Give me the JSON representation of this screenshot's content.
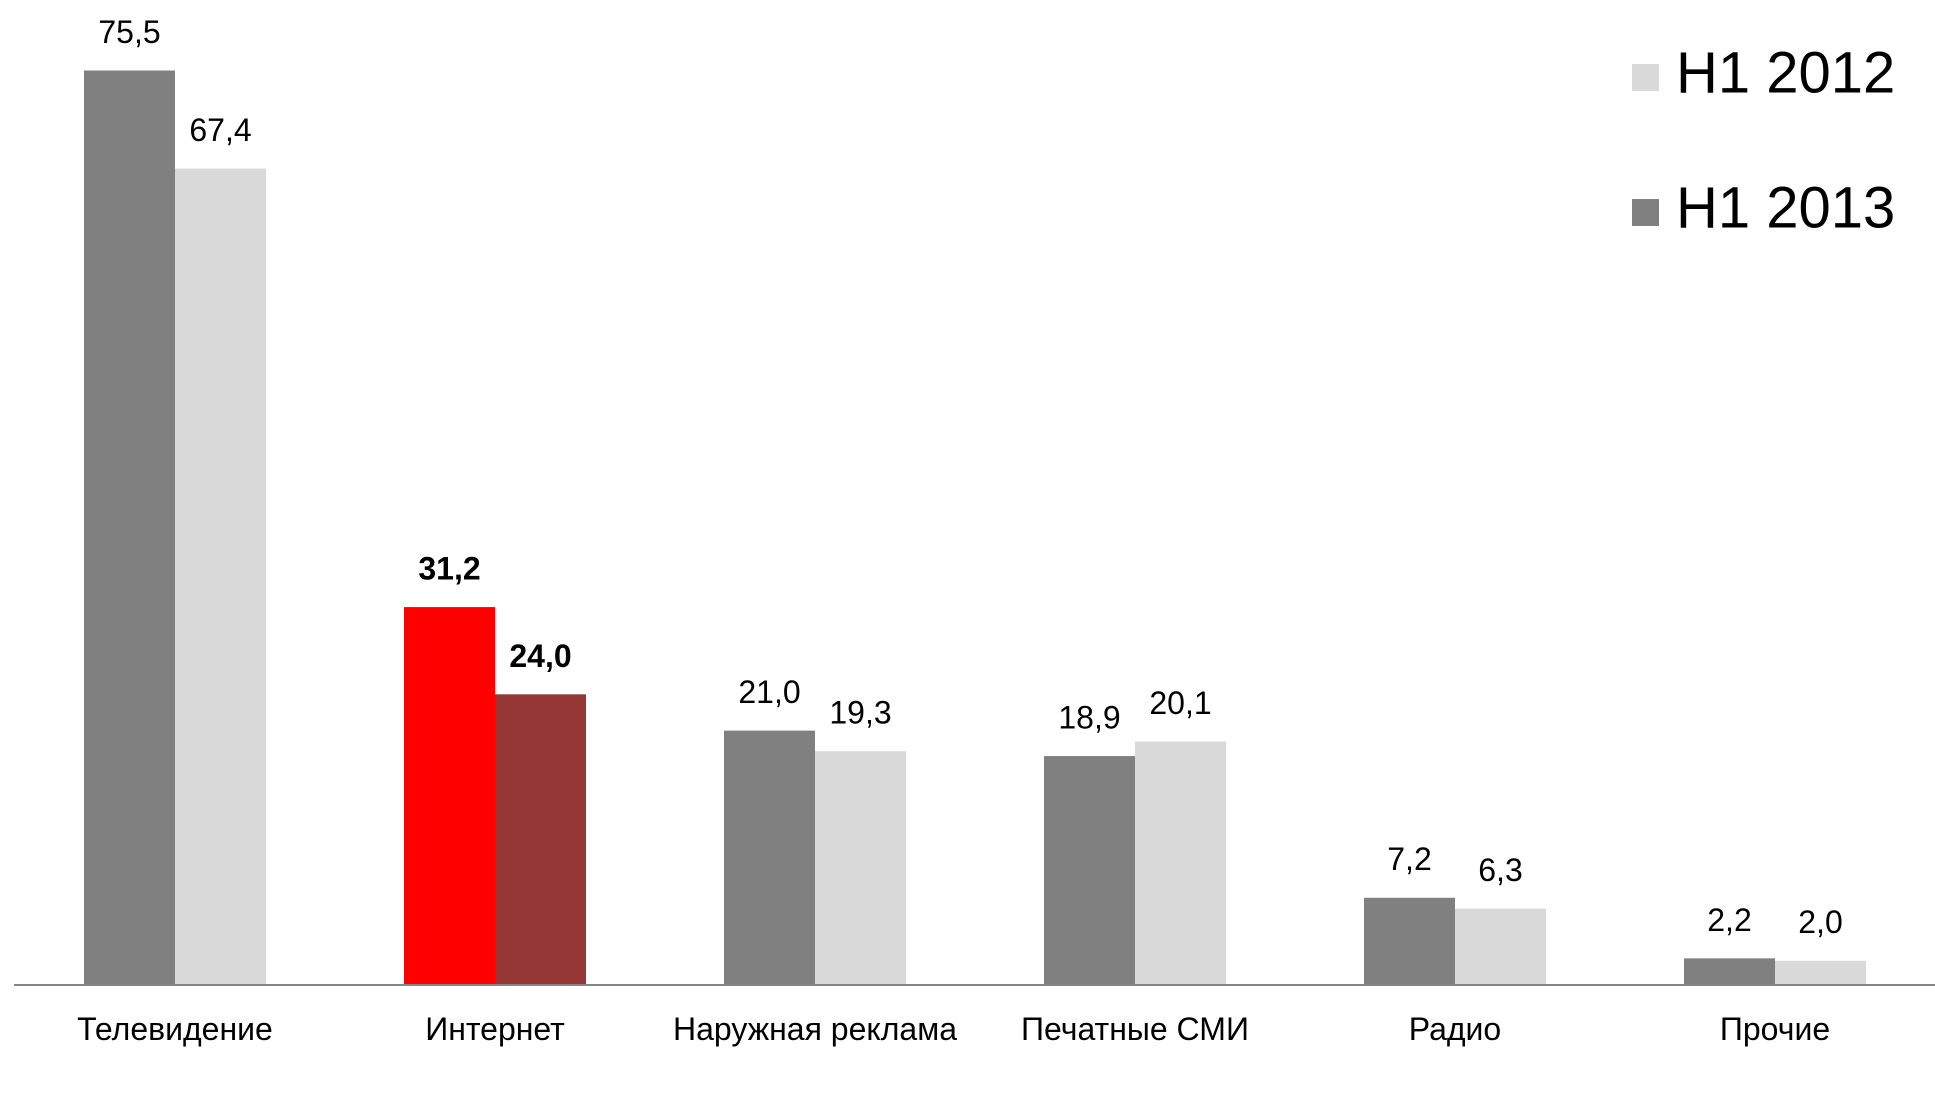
{
  "chart_data": {
    "type": "bar",
    "categories": [
      "Телевидение",
      "Интернет",
      "Наружная реклама",
      "Печатные СМИ",
      "Радио",
      "Прочие"
    ],
    "series": [
      {
        "name": "H1 2013",
        "color": "#808080",
        "colors": [
          "#808080",
          "#ff0000",
          "#808080",
          "#808080",
          "#808080",
          "#808080"
        ],
        "values": [
          75.5,
          31.2,
          21.0,
          18.9,
          7.2,
          2.2
        ],
        "value_labels": [
          "75,5",
          "31,2",
          "21,0",
          "18,9",
          "7,2",
          "2,2"
        ]
      },
      {
        "name": "H1 2012",
        "color": "#d9d9d9",
        "colors": [
          "#d9d9d9",
          "#953735",
          "#d9d9d9",
          "#d9d9d9",
          "#d9d9d9",
          "#d9d9d9"
        ],
        "values": [
          67.4,
          24.0,
          19.3,
          20.1,
          6.3,
          2.0
        ],
        "value_labels": [
          "67,4",
          "24,0",
          "19,3",
          "20,1",
          "6,3",
          "2,0"
        ]
      }
    ],
    "ylim": [
      0,
      80
    ],
    "legend": "top-right"
  }
}
